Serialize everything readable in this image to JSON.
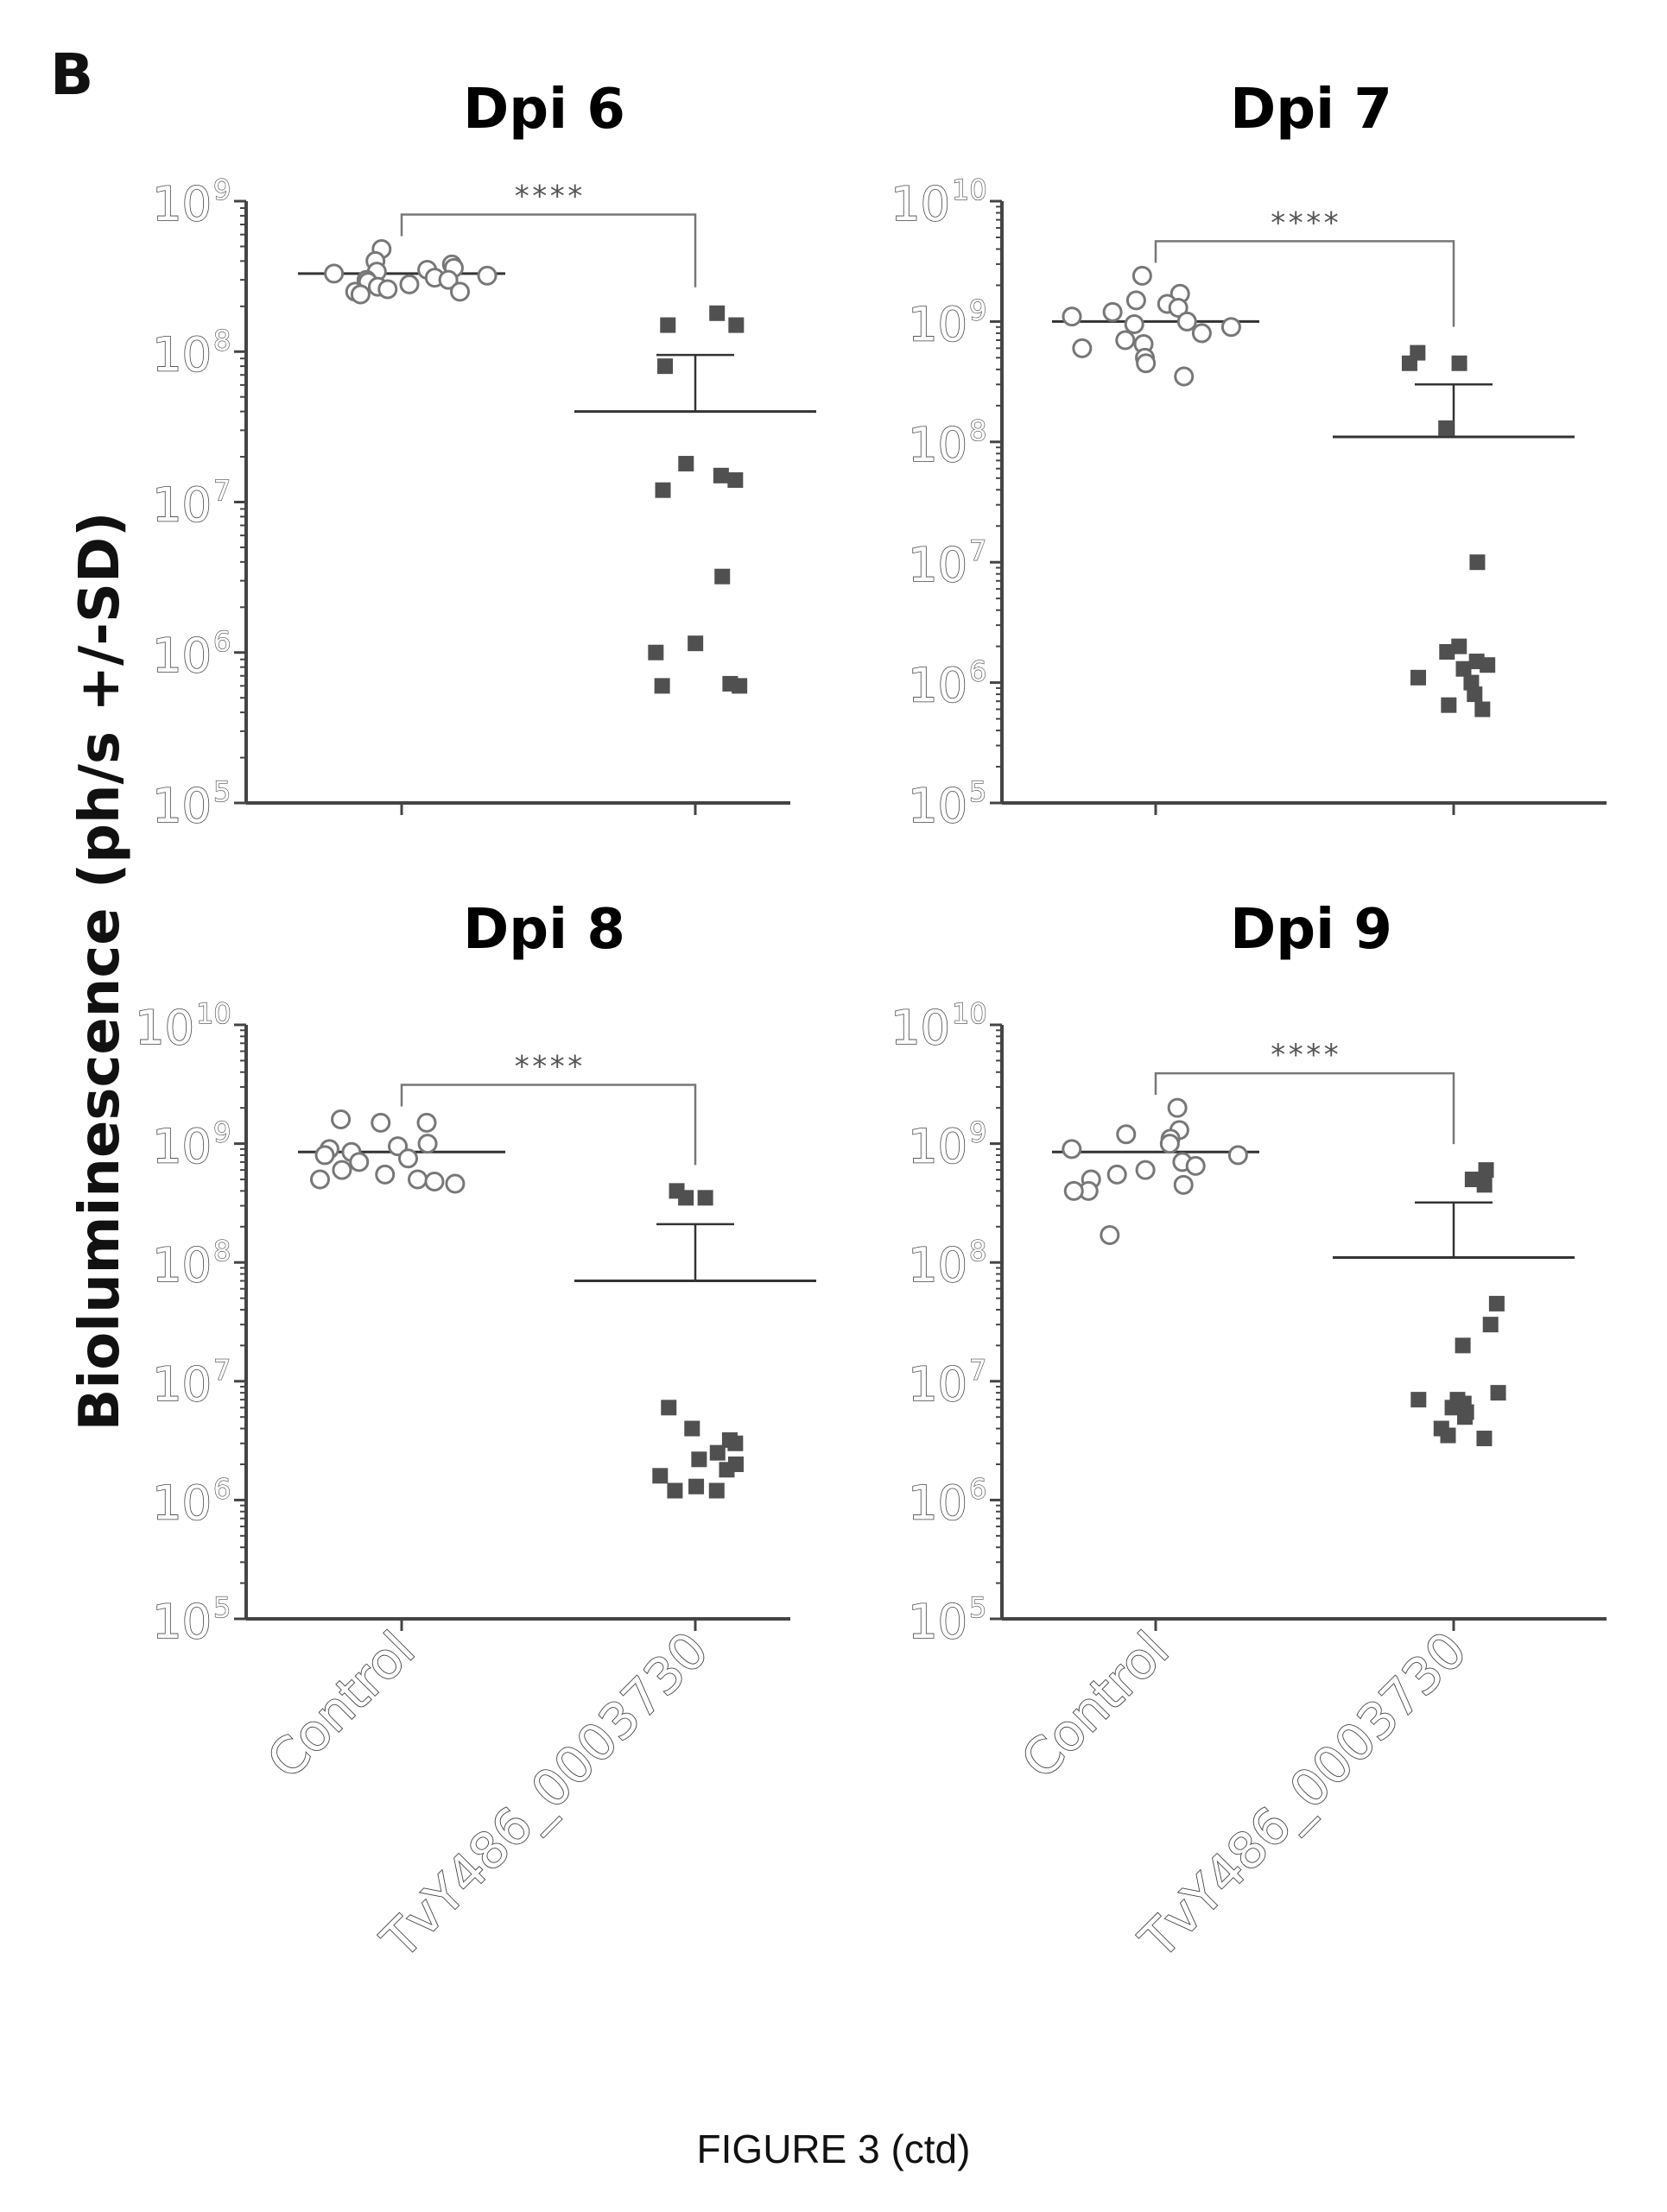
{
  "panel_letter": "B",
  "y_axis_label": "Bioluminescence (ph/s +/-SD)",
  "figure_caption": "FIGURE 3 (ctd)",
  "colors": {
    "control": "#777777",
    "treated": "#505050",
    "axis": "#444444",
    "bracket": "#777777"
  },
  "chart_data": [
    {
      "type": "scatter",
      "title": "Dpi 6",
      "categories": [
        "Control",
        "TvY486_0003730"
      ],
      "yscale": "log",
      "ylim": [
        100000,
        1000000000
      ],
      "ytick_labels": [
        "10^5",
        "10^6",
        "10^7",
        "10^8",
        "10^9"
      ],
      "significance": "****",
      "series": [
        {
          "category": "Control",
          "marker": "open-circle",
          "values": [
            480000000,
            400000000,
            380000000,
            360000000,
            350000000,
            340000000,
            330000000,
            320000000,
            310000000,
            300000000,
            300000000,
            290000000,
            280000000,
            270000000,
            260000000,
            250000000,
            250000000,
            240000000
          ],
          "mean": 330000000
        },
        {
          "category": "TvY486_0003730",
          "marker": "filled-square",
          "values": [
            180000000,
            150000000,
            150000000,
            80000000,
            18000000,
            15000000,
            14000000,
            12000000,
            3200000,
            1150000,
            1000000,
            620000,
            600000,
            600000
          ],
          "mean": 40000000,
          "sd_upper": 95000000
        }
      ]
    },
    {
      "type": "scatter",
      "title": "Dpi 7",
      "categories": [
        "Control",
        "TvY486_0003730"
      ],
      "yscale": "log",
      "ylim": [
        100000,
        10000000000
      ],
      "ytick_labels": [
        "10^5",
        "10^6",
        "10^7",
        "10^8",
        "10^9",
        "10^10"
      ],
      "significance": "****",
      "series": [
        {
          "category": "Control",
          "marker": "open-circle",
          "values": [
            2400000000,
            1700000000,
            1500000000,
            1400000000,
            1300000000,
            1200000000,
            1100000000,
            1000000000,
            950000000,
            900000000,
            800000000,
            700000000,
            650000000,
            600000000,
            500000000,
            450000000,
            350000000
          ],
          "mean": 1000000000
        },
        {
          "category": "TvY486_0003730",
          "marker": "filled-square",
          "values": [
            550000000,
            450000000,
            450000000,
            130000000,
            10000000,
            2000000,
            1800000,
            1500000,
            1400000,
            1300000,
            1100000,
            1000000,
            800000,
            650000,
            600000
          ],
          "mean": 110000000,
          "sd_upper": 300000000
        }
      ]
    },
    {
      "type": "scatter",
      "title": "Dpi 8",
      "categories": [
        "Control",
        "TvY486_0003730"
      ],
      "yscale": "log",
      "ylim": [
        100000,
        10000000000
      ],
      "ytick_labels": [
        "10^5",
        "10^6",
        "10^7",
        "10^8",
        "10^9",
        "10^10"
      ],
      "significance": "****",
      "series": [
        {
          "category": "Control",
          "marker": "open-circle",
          "values": [
            1600000000,
            1500000000,
            1500000000,
            1000000000,
            950000000,
            900000000,
            850000000,
            800000000,
            750000000,
            700000000,
            600000000,
            550000000,
            500000000,
            500000000,
            480000000,
            460000000
          ],
          "mean": 850000000
        },
        {
          "category": "TvY486_0003730",
          "marker": "filled-square",
          "values": [
            400000000,
            350000000,
            350000000,
            6000000,
            4000000,
            3200000,
            3000000,
            2500000,
            2200000,
            2000000,
            1800000,
            1600000,
            1300000,
            1200000,
            1200000
          ],
          "mean": 70000000,
          "sd_upper": 210000000
        }
      ]
    },
    {
      "type": "scatter",
      "title": "Dpi 9",
      "categories": [
        "Control",
        "TvY486_0003730"
      ],
      "yscale": "log",
      "ylim": [
        100000,
        10000000000
      ],
      "ytick_labels": [
        "10^5",
        "10^6",
        "10^7",
        "10^8",
        "10^9",
        "10^10"
      ],
      "significance": "****",
      "series": [
        {
          "category": "Control",
          "marker": "open-circle",
          "values": [
            2000000000,
            1300000000,
            1200000000,
            1100000000,
            1000000000,
            900000000,
            800000000,
            700000000,
            650000000,
            600000000,
            550000000,
            500000000,
            450000000,
            400000000,
            400000000,
            170000000
          ],
          "mean": 850000000
        },
        {
          "category": "TvY486_0003730",
          "marker": "filled-square",
          "values": [
            600000000,
            500000000,
            450000000,
            45000000,
            30000000,
            20000000,
            8000000,
            7000000,
            7000000,
            6500000,
            6000000,
            5500000,
            5000000,
            4000000,
            3500000,
            3300000
          ],
          "mean": 110000000,
          "sd_upper": 320000000
        }
      ]
    }
  ]
}
